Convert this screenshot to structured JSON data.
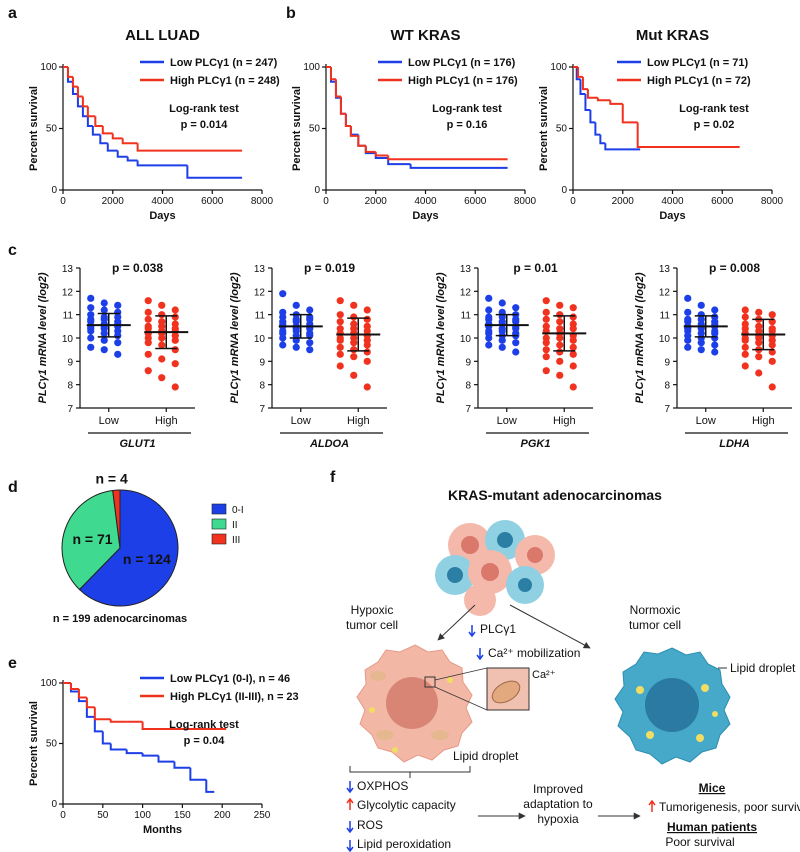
{
  "chart_data": [
    {
      "type": "line",
      "step": true,
      "panel": "a",
      "title": "ALL LUAD",
      "x_label": "Days",
      "y_label": "Percent survival",
      "xlim": [
        0,
        8000
      ],
      "xticks": [
        0,
        2000,
        4000,
        6000,
        8000
      ],
      "ylim": [
        0,
        100
      ],
      "yticks": [
        0,
        50,
        100
      ],
      "legend": "upper right",
      "annotations": [
        "Log-rank test",
        "p = 0.014"
      ],
      "series": [
        {
          "name": "Low PLCγ1 (n = 247)",
          "color": "#1d3fe8",
          "x": [
            0,
            200,
            400,
            600,
            800,
            1000,
            1200,
            1500,
            1800,
            2200,
            2600,
            3000,
            5000,
            7200
          ],
          "values": [
            100,
            88,
            78,
            68,
            60,
            52,
            45,
            38,
            32,
            27,
            24,
            20,
            10,
            10
          ]
        },
        {
          "name": "High PLCγ1 (n = 248)",
          "color": "#f0321e",
          "x": [
            0,
            200,
            400,
            600,
            800,
            1000,
            1300,
            1600,
            2000,
            2400,
            3000,
            7200
          ],
          "values": [
            100,
            92,
            84,
            76,
            68,
            60,
            52,
            46,
            42,
            38,
            32,
            32
          ]
        }
      ]
    },
    {
      "type": "line",
      "step": true,
      "panel": "b",
      "title": "WT KRAS",
      "x_label": "Days",
      "y_label": "Percent survival",
      "xlim": [
        0,
        8000
      ],
      "xticks": [
        0,
        2000,
        4000,
        6000,
        8000
      ],
      "ylim": [
        0,
        100
      ],
      "yticks": [
        0,
        50,
        100
      ],
      "legend": "upper right",
      "annotations": [
        "Log-rank test",
        "p = 0.16"
      ],
      "series": [
        {
          "name": "Low PLCγ1 (n = 176)",
          "color": "#1d3fe8",
          "x": [
            0,
            200,
            400,
            600,
            800,
            1000,
            1300,
            1600,
            2000,
            2500,
            3400,
            7300
          ],
          "values": [
            100,
            88,
            75,
            62,
            52,
            45,
            36,
            30,
            26,
            21,
            18,
            18
          ]
        },
        {
          "name": "High PLCγ1 (n = 176)",
          "color": "#f0321e",
          "x": [
            0,
            200,
            400,
            600,
            800,
            1000,
            1300,
            1600,
            2000,
            2500,
            7300
          ],
          "values": [
            100,
            90,
            76,
            62,
            52,
            44,
            36,
            31,
            28,
            25,
            25
          ]
        }
      ]
    },
    {
      "type": "line",
      "step": true,
      "title": "Mut KRAS",
      "x_label": "Days",
      "y_label": "Percent survival",
      "xlim": [
        0,
        8000
      ],
      "xticks": [
        0,
        2000,
        4000,
        6000,
        8000
      ],
      "ylim": [
        0,
        100
      ],
      "yticks": [
        0,
        50,
        100
      ],
      "legend": "upper right",
      "annotations": [
        "Log-rank test",
        "p = 0.02"
      ],
      "series": [
        {
          "name": "Low PLCγ1 (n = 71)",
          "color": "#1d3fe8",
          "x": [
            0,
            150,
            300,
            500,
            700,
            900,
            1100,
            1300,
            2700
          ],
          "values": [
            100,
            90,
            78,
            65,
            55,
            45,
            38,
            33,
            33
          ]
        },
        {
          "name": "High PLCγ1 (n = 72)",
          "color": "#f0321e",
          "x": [
            0,
            200,
            400,
            600,
            1000,
            1500,
            2000,
            2600,
            6700
          ],
          "values": [
            100,
            92,
            82,
            75,
            73,
            70,
            55,
            35,
            35
          ]
        }
      ]
    },
    {
      "type": "strip",
      "panel": "c",
      "title": "p = 0.038",
      "y_label": "PLCγ1 mRNA level (log2)",
      "group_label": "GLUT1",
      "categories": [
        "Low",
        "High"
      ],
      "colors": [
        "#1d3fe8",
        "#f0321e"
      ],
      "ylim": [
        7,
        13
      ],
      "yticks": [
        7,
        8,
        9,
        10,
        11,
        12,
        13
      ],
      "mean": [
        10.55,
        10.25
      ],
      "sd": [
        0.5,
        0.7
      ],
      "values": [
        [
          11.7,
          11.5,
          11.4,
          11.3,
          11.2,
          11.1,
          11.0,
          10.9,
          10.9,
          10.8,
          10.8,
          10.7,
          10.7,
          10.6,
          10.6,
          10.5,
          10.5,
          10.5,
          10.4,
          10.4,
          10.3,
          10.3,
          10.2,
          10.1,
          10.0,
          9.9,
          9.8,
          9.6,
          9.5,
          9.3
        ],
        [
          11.6,
          11.4,
          11.2,
          11.1,
          11.0,
          10.9,
          10.8,
          10.7,
          10.6,
          10.5,
          10.5,
          10.4,
          10.4,
          10.3,
          10.3,
          10.2,
          10.2,
          10.1,
          10.0,
          10.0,
          9.9,
          9.8,
          9.7,
          9.5,
          9.3,
          9.1,
          8.9,
          8.6,
          8.3,
          7.9
        ]
      ]
    },
    {
      "type": "strip",
      "title": "p = 0.019",
      "y_label": "PLCγ1 mRNA level (log2)",
      "group_label": "ALDOA",
      "categories": [
        "Low",
        "High"
      ],
      "colors": [
        "#1d3fe8",
        "#f0321e"
      ],
      "ylim": [
        7,
        13
      ],
      "yticks": [
        7,
        8,
        9,
        10,
        11,
        12,
        13
      ],
      "mean": [
        10.5,
        10.15
      ],
      "sd": [
        0.5,
        0.7
      ],
      "values": [
        [
          11.9,
          11.4,
          11.2,
          11.1,
          11.0,
          10.9,
          10.9,
          10.8,
          10.8,
          10.7,
          10.7,
          10.6,
          10.6,
          10.5,
          10.5,
          10.5,
          10.4,
          10.4,
          10.3,
          10.3,
          10.2,
          10.2,
          10.1,
          10.1,
          10.0,
          9.9,
          9.8,
          9.7,
          9.6,
          9.5
        ],
        [
          11.6,
          11.4,
          11.2,
          11.0,
          10.9,
          10.8,
          10.7,
          10.6,
          10.5,
          10.4,
          10.4,
          10.3,
          10.2,
          10.2,
          10.1,
          10.0,
          10.0,
          9.9,
          9.9,
          9.8,
          9.7,
          9.6,
          9.5,
          9.4,
          9.3,
          9.2,
          9.0,
          8.8,
          8.4,
          7.9
        ]
      ]
    },
    {
      "type": "strip",
      "title": "p = 0.01",
      "y_label": "PLCγ1 mRNA level (log2)",
      "group_label": "PGK1",
      "categories": [
        "Low",
        "High"
      ],
      "colors": [
        "#1d3fe8",
        "#f0321e"
      ],
      "ylim": [
        7,
        13
      ],
      "yticks": [
        7,
        8,
        9,
        10,
        11,
        12,
        13
      ],
      "mean": [
        10.55,
        10.2
      ],
      "sd": [
        0.45,
        0.75
      ],
      "values": [
        [
          11.7,
          11.5,
          11.3,
          11.2,
          11.1,
          11.0,
          10.9,
          10.9,
          10.8,
          10.8,
          10.7,
          10.7,
          10.6,
          10.6,
          10.5,
          10.5,
          10.4,
          10.4,
          10.3,
          10.3,
          10.2,
          10.2,
          10.1,
          10.1,
          10.0,
          9.9,
          9.8,
          9.7,
          9.6,
          9.4
        ],
        [
          11.6,
          11.4,
          11.3,
          11.1,
          11.0,
          10.9,
          10.8,
          10.7,
          10.6,
          10.5,
          10.4,
          10.4,
          10.3,
          10.2,
          10.1,
          10.0,
          10.0,
          9.9,
          9.8,
          9.7,
          9.6,
          9.5,
          9.4,
          9.3,
          9.2,
          9.0,
          8.8,
          8.6,
          8.4,
          7.9
        ]
      ]
    },
    {
      "type": "strip",
      "title": "p = 0.008",
      "y_label": "PLCγ1 mRNA level (log2)",
      "group_label": "LDHA",
      "categories": [
        "Low",
        "High"
      ],
      "colors": [
        "#1d3fe8",
        "#f0321e"
      ],
      "ylim": [
        7,
        13
      ],
      "yticks": [
        7,
        8,
        9,
        10,
        11,
        12,
        13
      ],
      "mean": [
        10.5,
        10.15
      ],
      "sd": [
        0.45,
        0.65
      ],
      "values": [
        [
          11.7,
          11.4,
          11.2,
          11.1,
          11.0,
          10.9,
          10.8,
          10.8,
          10.7,
          10.7,
          10.6,
          10.6,
          10.5,
          10.5,
          10.5,
          10.4,
          10.4,
          10.3,
          10.3,
          10.2,
          10.2,
          10.1,
          10.0,
          10.0,
          9.9,
          9.8,
          9.7,
          9.6,
          9.5,
          9.4
        ],
        [
          11.2,
          11.1,
          11.0,
          10.9,
          10.8,
          10.7,
          10.6,
          10.5,
          10.4,
          10.4,
          10.3,
          10.3,
          10.2,
          10.1,
          10.1,
          10.0,
          10.0,
          9.9,
          9.9,
          9.8,
          9.7,
          9.6,
          9.5,
          9.4,
          9.3,
          9.2,
          9.0,
          8.8,
          8.5,
          7.9
        ]
      ]
    },
    {
      "type": "pie",
      "panel": "d",
      "categories": [
        "0-I",
        "II",
        "III"
      ],
      "values": [
        124,
        71,
        4
      ],
      "value_labels": [
        "n = 124",
        "n = 71",
        "n = 4"
      ],
      "colors": [
        "#1d3fe8",
        "#3fd98f",
        "#f0321e"
      ],
      "legend": "upper right",
      "caption": "n = 199 adenocarcinomas"
    },
    {
      "type": "line",
      "step": true,
      "panel": "e",
      "x_label": "Months",
      "y_label": "Percent survival",
      "xlim": [
        0,
        250
      ],
      "xticks": [
        0,
        50,
        100,
        150,
        200,
        250
      ],
      "ylim": [
        0,
        100
      ],
      "yticks": [
        0,
        50,
        100
      ],
      "legend": "upper right",
      "annotations": [
        "Log-rank test",
        "p = 0.04"
      ],
      "series": [
        {
          "name": "Low PLCγ1 (0-I), n = 46",
          "color": "#1d3fe8",
          "x": [
            0,
            10,
            20,
            30,
            40,
            50,
            60,
            80,
            100,
            120,
            140,
            160,
            180,
            190
          ],
          "values": [
            100,
            93,
            85,
            72,
            60,
            50,
            45,
            42,
            40,
            35,
            30,
            20,
            10,
            10
          ]
        },
        {
          "name": "High PLCγ1 (II-III), n = 23",
          "color": "#f0321e",
          "x": [
            0,
            10,
            20,
            30,
            40,
            60,
            80,
            100,
            205
          ],
          "values": [
            100,
            95,
            88,
            80,
            70,
            68,
            68,
            62,
            62
          ]
        }
      ]
    }
  ],
  "diagram": {
    "panel": "f",
    "title": "KRAS-mutant adenocarcinomas",
    "hypoxic_label": [
      "Hypoxic",
      "tumor cell"
    ],
    "normoxic_label": [
      "Normoxic",
      "tumor cell"
    ],
    "plc": "PLCγ1",
    "ca_mobilization": "Ca²⁺ mobilization",
    "ca": "Ca²⁺",
    "lipid_droplet_hypoxic": "Lipid droplet",
    "lipid_droplet_normoxic": "Lipid droplet",
    "effects": [
      "OXPHOS",
      "Glycolytic capacity",
      "ROS",
      "Lipid peroxidation"
    ],
    "adaptation": [
      "Improved",
      "adaptation to",
      "hypoxia"
    ],
    "mice": "Mice",
    "mice_outcome": "Tumorigenesis, poor survival",
    "human": "Human patients",
    "human_outcome": "Poor survival"
  }
}
